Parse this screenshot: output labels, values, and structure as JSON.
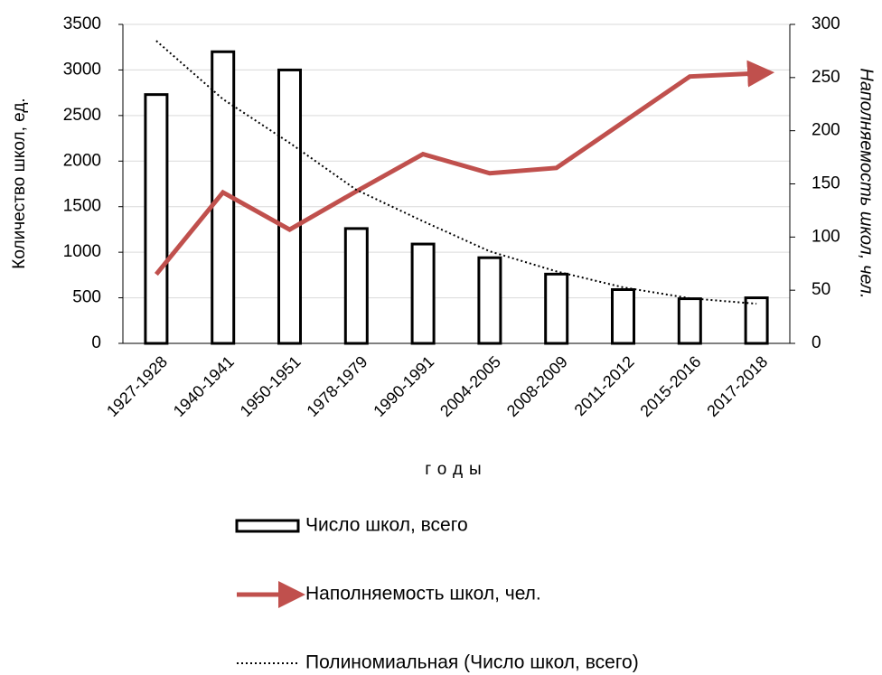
{
  "chart_data": {
    "type": "bar",
    "categories": [
      "1927-1928",
      "1940-1941",
      "1950-1951",
      "1978-1979",
      "1990-1991",
      "2004-2005",
      "2008-2009",
      "2011-2012",
      "2015-2016",
      "2017-2018"
    ],
    "series": [
      {
        "name": "Число школ, всего",
        "type": "bar",
        "color": "#000000",
        "values": [
          2730,
          3200,
          3000,
          1260,
          1090,
          940,
          760,
          590,
          490,
          500
        ]
      },
      {
        "name": "Наполняемость школ, чел.",
        "type": "line",
        "axis": "y2",
        "color": "#c0504d",
        "values": [
          65,
          142,
          107,
          143,
          178,
          160,
          165,
          208,
          251,
          254
        ]
      },
      {
        "name": "Полиномиальная (Число школ, всего)",
        "type": "trend",
        "color": "#000000",
        "values": [
          3320,
          2680,
          2200,
          1685,
          1340,
          1010,
          790,
          615,
          495,
          435
        ]
      }
    ],
    "ylim": [
      0,
      3500
    ],
    "yticks": [
      0,
      500,
      1000,
      1500,
      2000,
      2500,
      3000,
      3500
    ],
    "y2lim": [
      0,
      300
    ],
    "y2ticks": [
      0,
      50,
      100,
      150,
      200,
      250,
      300
    ],
    "ylabel": "Количество школ, ед.",
    "y2label": "Наполняемость школ, чел.",
    "xlabel": "годы",
    "grid": true
  }
}
